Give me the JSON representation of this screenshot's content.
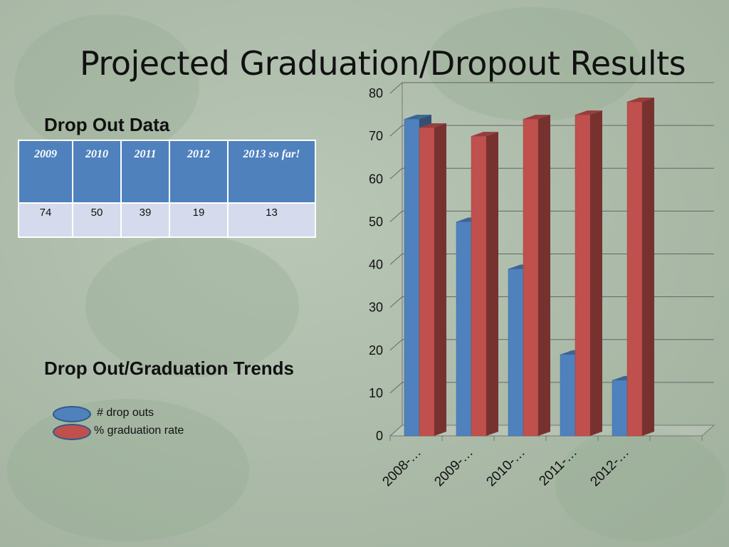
{
  "slide": {
    "title": "Projected Graduation/Dropout Results"
  },
  "dropout_section": {
    "heading": "Drop Out Data",
    "table": {
      "headers": [
        "2009",
        "2010",
        "2011",
        "2012",
        "2013 so far!"
      ],
      "values": [
        "74",
        "50",
        "39",
        "19",
        "13"
      ]
    }
  },
  "trends_section": {
    "heading": "Drop Out/Graduation Trends"
  },
  "legend": [
    {
      "label": "# drop outs",
      "color": "#4f81bd"
    },
    {
      "label": "% graduation rate",
      "color": "#c0504d"
    }
  ],
  "chart_data": {
    "type": "bar",
    "categories": [
      "2008-…",
      "2009-…",
      "2010-…",
      "2011-…",
      "2012-…"
    ],
    "series": [
      {
        "name": "# drop outs",
        "values": [
          74,
          50,
          39,
          19,
          13
        ],
        "color": "#4f81bd"
      },
      {
        "name": "% graduation rate",
        "values": [
          72,
          70,
          74,
          75,
          78
        ],
        "color": "#c0504d"
      }
    ],
    "ylim": [
      0,
      80
    ],
    "yticks": [
      0,
      10,
      20,
      30,
      40,
      50,
      60,
      70,
      80
    ],
    "grid": true,
    "style": "3d-column",
    "legend": "left"
  }
}
